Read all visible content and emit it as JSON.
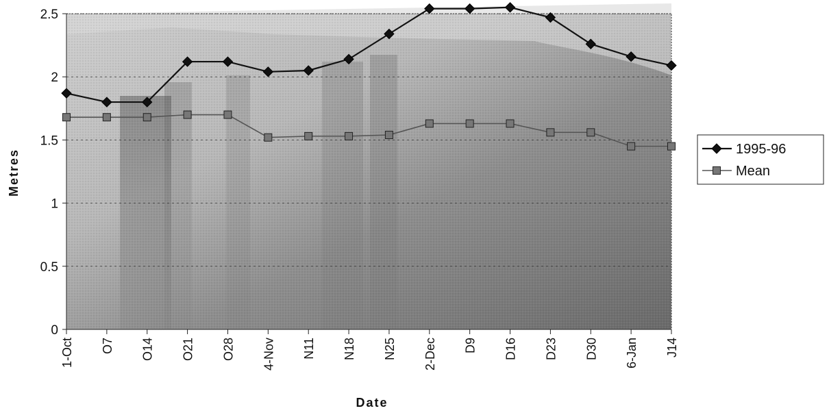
{
  "chart_data": {
    "type": "line",
    "title": "",
    "xlabel": "Date",
    "ylabel": "Metres",
    "ylim": [
      0,
      2.5
    ],
    "yticks": [
      0,
      0.5,
      1,
      1.5,
      2,
      2.5
    ],
    "ytick_labels": [
      "0",
      "0.5",
      "1",
      "1.5",
      "2",
      "2.5"
    ],
    "categories": [
      "1-Oct",
      "O7",
      "O14",
      "O21",
      "O28",
      "4-Nov",
      "N11",
      "N18",
      "N25",
      "2-Dec",
      "D9",
      "D16",
      "D23",
      "D30",
      "6-Jan",
      "J14"
    ],
    "grid": "horizontal dashed",
    "legend_position": "right",
    "series": [
      {
        "name": "1995-96",
        "marker": "diamond",
        "color": "#111111",
        "values": [
          1.87,
          1.8,
          1.8,
          2.12,
          2.12,
          2.04,
          2.05,
          2.14,
          2.34,
          2.54,
          2.54,
          2.55,
          2.47,
          2.26,
          2.16,
          2.09
        ]
      },
      {
        "name": "Mean",
        "marker": "square",
        "color": "#555555",
        "values": [
          1.68,
          1.68,
          1.68,
          1.7,
          1.7,
          1.52,
          1.53,
          1.53,
          1.54,
          1.63,
          1.63,
          1.63,
          1.56,
          1.56,
          1.45,
          1.45
        ]
      }
    ]
  }
}
